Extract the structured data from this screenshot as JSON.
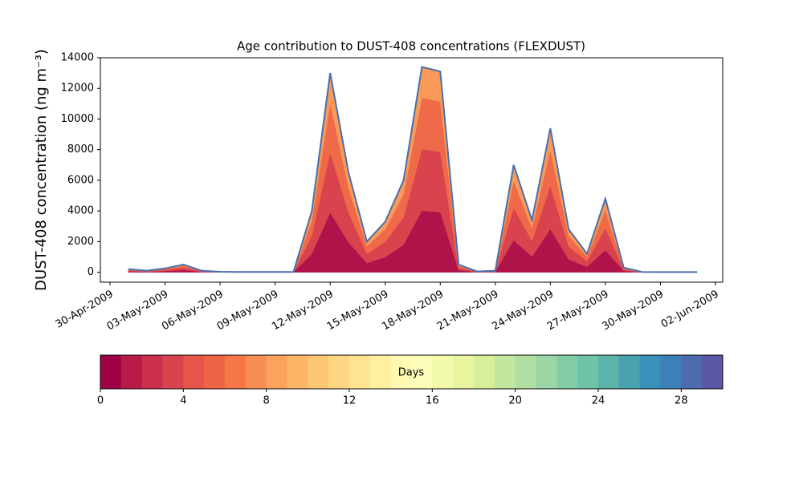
{
  "chart_data": {
    "type": "stacked_area",
    "title": "Age contribution to DUST-408 concentrations (FLEXDUST)",
    "y_label": "DUST-408 concentration (ng m⁻³)",
    "x": [
      "01-May-2009",
      "02-May-2009",
      "03-May-2009",
      "04-May-2009",
      "05-May-2009",
      "06-May-2009",
      "07-May-2009",
      "08-May-2009",
      "09-May-2009",
      "10-May-2009",
      "11-May-2009",
      "12-May-2009",
      "13-May-2009",
      "14-May-2009",
      "15-May-2009",
      "16-May-2009",
      "17-May-2009",
      "18-May-2009",
      "19-May-2009",
      "20-May-2009",
      "21-May-2009",
      "22-May-2009",
      "23-May-2009",
      "24-May-2009",
      "25-May-2009",
      "26-May-2009",
      "27-May-2009",
      "28-May-2009",
      "29-May-2009",
      "30-May-2009",
      "31-May-2009",
      "01-Jun-2009"
    ],
    "series": [
      {
        "color": "#b0124a",
        "values": [
          60,
          30,
          75,
          150,
          30,
          9,
          6,
          6,
          6,
          6,
          1200,
          3900,
          1950,
          600,
          990,
          1800,
          4020,
          3930,
          150,
          15,
          30,
          2100,
          1020,
          2820,
          840,
          360,
          1440,
          90,
          6,
          3,
          3,
          3
        ]
      },
      {
        "color": "#d8434e",
        "values": [
          60,
          30,
          75,
          150,
          30,
          9,
          6,
          6,
          6,
          6,
          1200,
          3900,
          1950,
          600,
          990,
          1800,
          4020,
          3930,
          150,
          15,
          30,
          2100,
          1020,
          2820,
          840,
          360,
          1440,
          90,
          6,
          3,
          3,
          3
        ]
      },
      {
        "color": "#ee6a48",
        "values": [
          50,
          25,
          60,
          125,
          25,
          8,
          5,
          5,
          5,
          5,
          1000,
          3250,
          1625,
          500,
          825,
          1500,
          3350,
          3275,
          125,
          12,
          25,
          1750,
          850,
          2350,
          700,
          300,
          1200,
          75,
          5,
          2,
          2,
          2
        ]
      },
      {
        "color": "#f99a58",
        "values": [
          30,
          15,
          40,
          75,
          15,
          4,
          3,
          3,
          3,
          3,
          600,
          1950,
          975,
          300,
          495,
          900,
          2010,
          1965,
          75,
          8,
          15,
          1050,
          510,
          1410,
          420,
          180,
          720,
          45,
          3,
          2,
          2,
          2
        ]
      }
    ],
    "outline_color": "#4a6fae",
    "xlim": [
      "30-Apr-2009",
      "02-Jun-2009"
    ],
    "xticks": [
      "30-Apr-2009",
      "03-May-2009",
      "06-May-2009",
      "09-May-2009",
      "12-May-2009",
      "15-May-2009",
      "18-May-2009",
      "21-May-2009",
      "24-May-2009",
      "27-May-2009",
      "30-May-2009",
      "02-Jun-2009"
    ],
    "ylim": [
      -650,
      14000
    ],
    "yticks": [
      0,
      2000,
      4000,
      6000,
      8000,
      10000,
      12000,
      14000
    ],
    "colorbar": {
      "label": "Days",
      "lim": [
        0,
        30
      ],
      "ticks": [
        0,
        4,
        8,
        12,
        16,
        20,
        24,
        28
      ],
      "colors": [
        "#a00343",
        "#b81b49",
        "#ca304e",
        "#d8434e",
        "#e5554a",
        "#ed6447",
        "#f57748",
        "#f88e53",
        "#fba35d",
        "#fdb567",
        "#fdc674",
        "#fed683",
        "#fee491",
        "#fff09f",
        "#fff9b3",
        "#fbfdb9",
        "#f3faab",
        "#e8f59e",
        "#d7ef9b",
        "#c3e79f",
        "#b0dfa2",
        "#9bd6a4",
        "#84cca5",
        "#6fc3a6",
        "#5cb3aa",
        "#4aa1b0",
        "#3990b8",
        "#3d7fb9",
        "#4d6cb0",
        "#5b56a5"
      ]
    }
  }
}
